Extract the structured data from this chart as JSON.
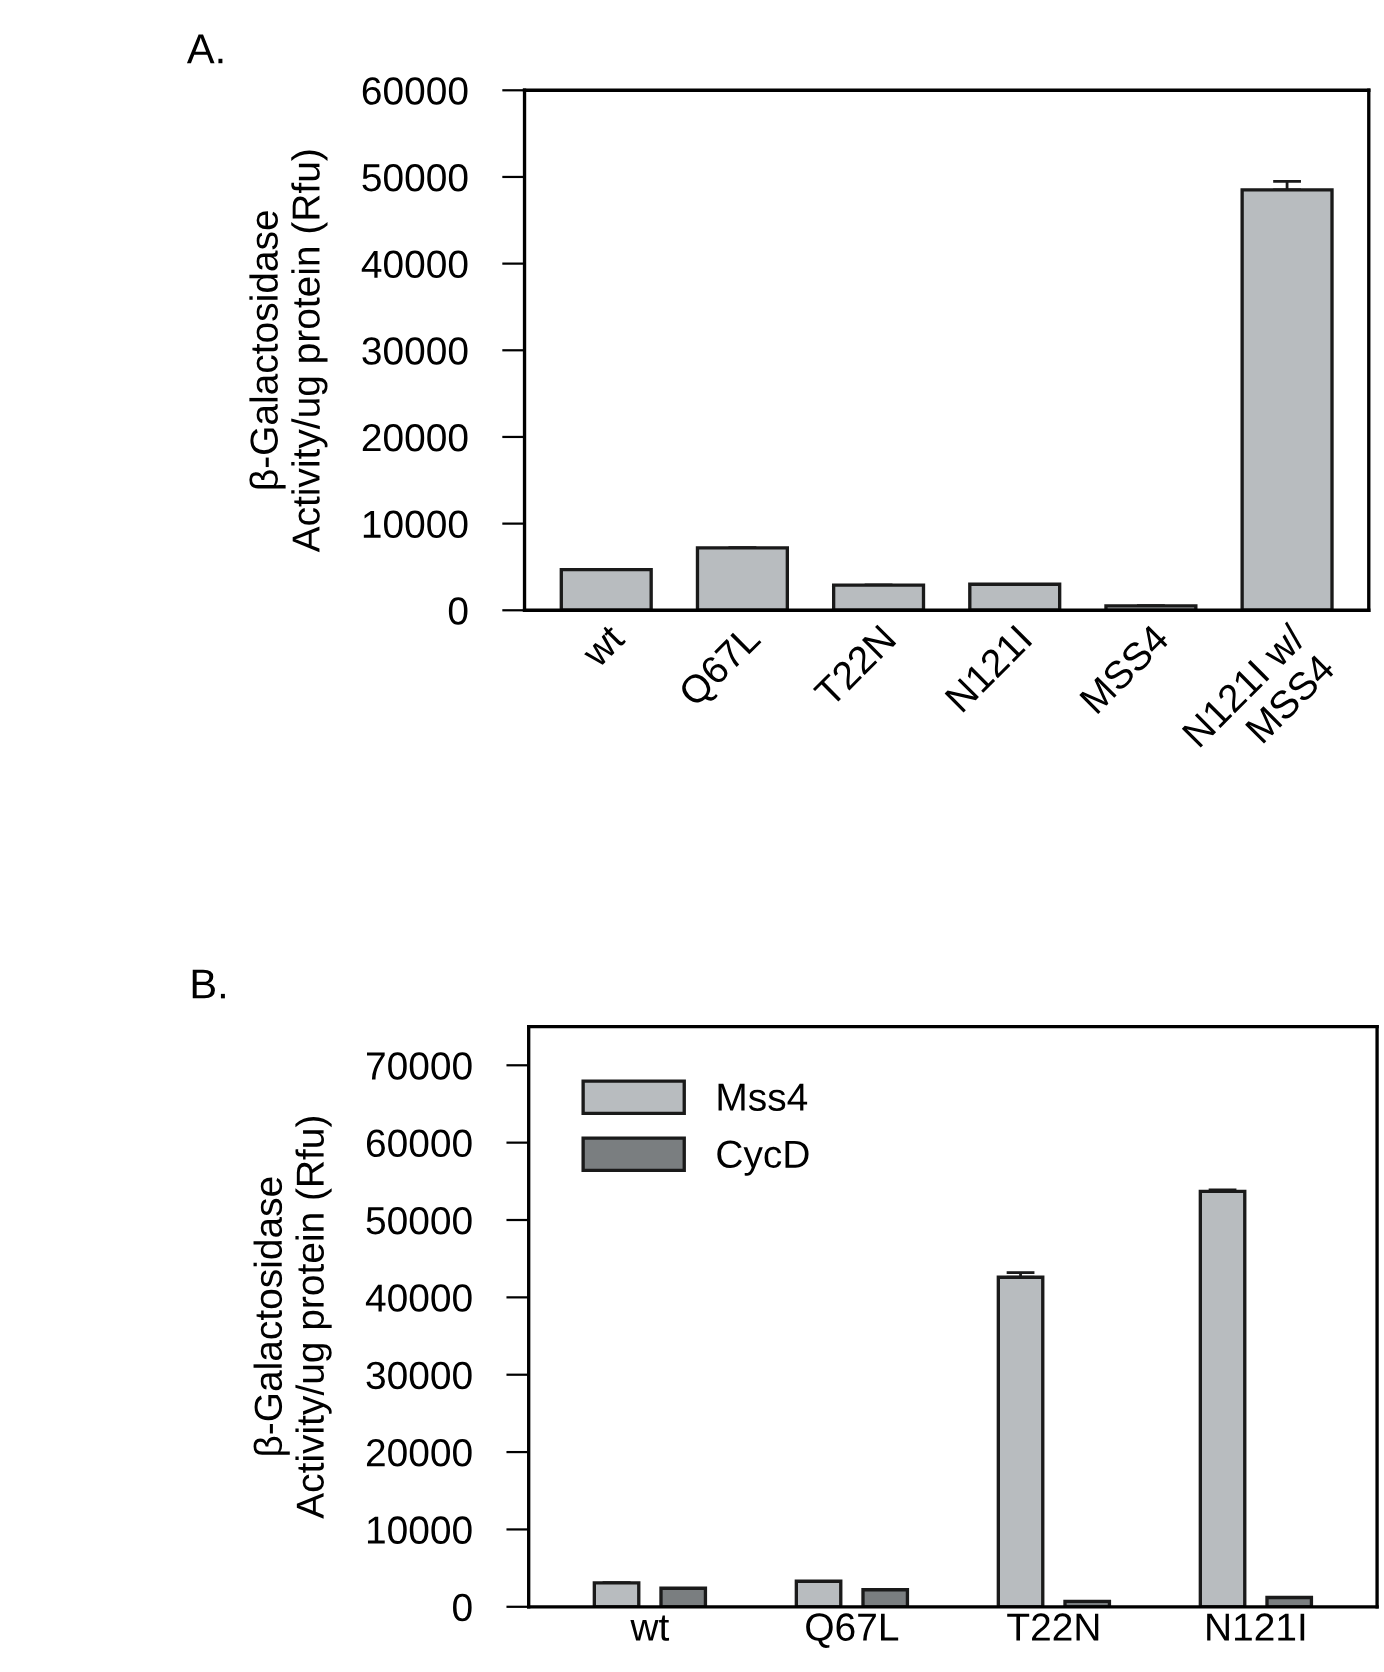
{
  "chart_data": [
    {
      "type": "bar",
      "title": "A.",
      "ylabel": "β-Galactosidase\nActivity/ug protein (Rfu)",
      "categories": [
        "wt",
        "Q67L",
        "T22N",
        "N121I",
        "MSS4",
        "N121I w/\nMSS4"
      ],
      "values": [
        4700,
        7200,
        2900,
        3000,
        500,
        48500
      ],
      "errors": [
        null,
        null,
        null,
        null,
        null,
        1000
      ],
      "color": "#b8bcbf",
      "ylim": [
        0,
        60000
      ],
      "yticks": [
        0,
        10000,
        20000,
        30000,
        40000,
        50000,
        60000
      ],
      "grid": false,
      "legend": false
    },
    {
      "type": "bar",
      "title": "B.",
      "ylabel": "β-Galactosidase\nActivity/ug protein (Rfu)",
      "categories": [
        "wt",
        "Q67L",
        "T22N",
        "N121I"
      ],
      "series": [
        {
          "name": "Mss4",
          "color": "#b8bcbf",
          "values": [
            3100,
            3300,
            42600,
            53700
          ],
          "errors": [
            null,
            null,
            600,
            200
          ]
        },
        {
          "name": "CycD",
          "color": "#7a7e80",
          "values": [
            2400,
            2200,
            700,
            1200
          ]
        }
      ],
      "ylim": [
        0,
        75000
      ],
      "yticks": [
        0,
        10000,
        20000,
        30000,
        40000,
        50000,
        60000,
        70000
      ],
      "grid": false,
      "legend": "top left"
    }
  ]
}
